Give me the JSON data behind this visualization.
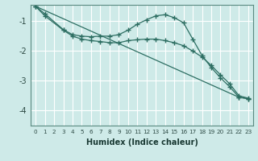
{
  "xlabel": "Humidex (Indice chaleur)",
  "background_color": "#ceeae8",
  "grid_color": "#ffffff",
  "line_color": "#2d6e62",
  "xlim": [
    -0.5,
    23.5
  ],
  "ylim": [
    -4.5,
    -0.45
  ],
  "yticks": [
    -4,
    -3,
    -2,
    -1
  ],
  "xticks": [
    0,
    1,
    2,
    3,
    4,
    5,
    6,
    7,
    8,
    9,
    10,
    11,
    12,
    13,
    14,
    15,
    16,
    17,
    18,
    19,
    20,
    21,
    22,
    23
  ],
  "series": [
    {
      "x": [
        0,
        1,
        3,
        4,
        5,
        6,
        7,
        8,
        9,
        10,
        11,
        12,
        13,
        14,
        15,
        16,
        17,
        18,
        19,
        20,
        21,
        22,
        23
      ],
      "y": [
        -0.5,
        -0.75,
        -1.28,
        -1.45,
        -1.5,
        -1.52,
        -1.5,
        -1.5,
        -1.45,
        -1.3,
        -1.1,
        -0.95,
        -0.82,
        -0.78,
        -0.88,
        -1.05,
        -1.6,
        -2.15,
        -2.55,
        -2.9,
        -3.2,
        -3.55,
        -3.6
      ]
    },
    {
      "x": [
        0,
        1,
        3,
        4,
        5,
        6,
        7,
        8,
        9,
        10,
        11,
        12,
        13,
        14,
        15,
        16,
        17,
        18,
        19,
        20,
        21,
        22,
        23
      ],
      "y": [
        -0.5,
        -0.82,
        -1.3,
        -1.5,
        -1.6,
        -1.65,
        -1.68,
        -1.72,
        -1.72,
        -1.65,
        -1.62,
        -1.6,
        -1.6,
        -1.65,
        -1.72,
        -1.82,
        -2.0,
        -2.2,
        -2.48,
        -2.8,
        -3.1,
        -3.5,
        -3.58
      ]
    },
    {
      "x": [
        0,
        22,
        23
      ],
      "y": [
        -0.5,
        -3.55,
        -3.6
      ]
    }
  ]
}
